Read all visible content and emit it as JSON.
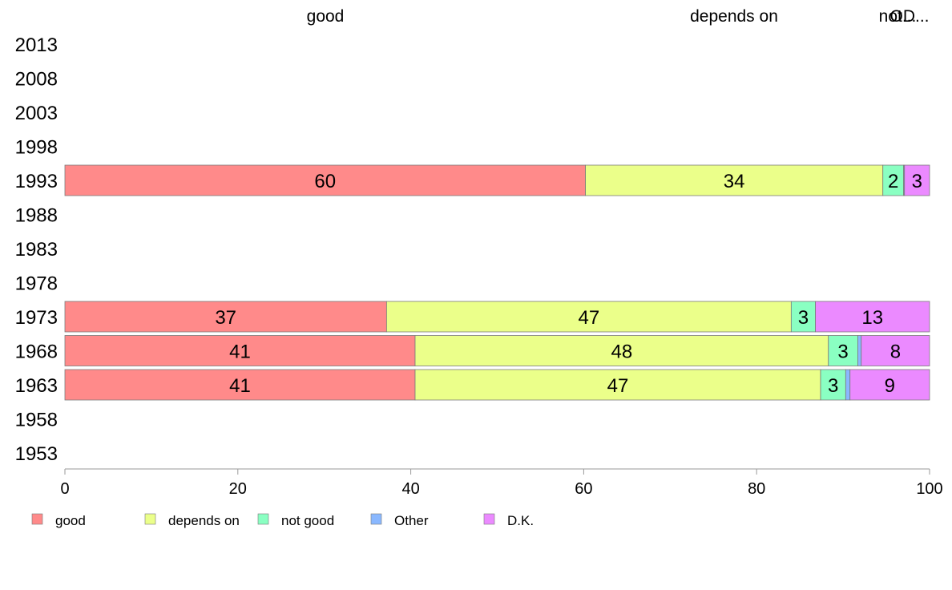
{
  "chart_data": {
    "type": "bar",
    "orientation": "horizontal",
    "stacked": true,
    "categories": [
      "2013",
      "2008",
      "2003",
      "1998",
      "1993",
      "1988",
      "1983",
      "1978",
      "1973",
      "1968",
      "1963",
      "1958",
      "1953"
    ],
    "series": [
      {
        "name": "good",
        "color": "#ff8a8a",
        "values": [
          null,
          null,
          null,
          null,
          60.2,
          null,
          null,
          null,
          37.2,
          40.5,
          40.5,
          null,
          null
        ]
      },
      {
        "name": "depends on",
        "color": "#ebff8a",
        "values": [
          null,
          null,
          null,
          null,
          34.4,
          null,
          null,
          null,
          46.8,
          47.8,
          46.9,
          null,
          null
        ]
      },
      {
        "name": "not good",
        "color": "#8affc2",
        "values": [
          null,
          null,
          null,
          null,
          2.4,
          null,
          null,
          null,
          2.8,
          3.4,
          2.9,
          null,
          null
        ]
      },
      {
        "name": "Other",
        "color": "#8ab8ff",
        "values": [
          null,
          null,
          null,
          null,
          0.1,
          null,
          null,
          null,
          0.0,
          0.4,
          0.5,
          null,
          null
        ]
      },
      {
        "name": "D.K.",
        "color": "#eb8aff",
        "values": [
          null,
          null,
          null,
          null,
          2.9,
          null,
          null,
          null,
          13.2,
          7.9,
          9.2,
          null,
          null
        ]
      }
    ],
    "data_labels": {
      "1993": [
        "60",
        "34",
        "2",
        "",
        "3"
      ],
      "1973": [
        "37",
        "47",
        "3",
        "",
        "13"
      ],
      "1968": [
        "41",
        "48",
        "3",
        "",
        "8"
      ],
      "1963": [
        "41",
        "47",
        "3",
        "",
        "9"
      ]
    },
    "top_labels": [
      "good",
      "depends on",
      "not...",
      "OD..."
    ],
    "xlim": [
      0,
      100
    ],
    "xticks": [
      0,
      20,
      40,
      60,
      80,
      100
    ],
    "xlabel": "",
    "ylabel": "",
    "title": "",
    "grid": false,
    "legend_position": "bottom-left"
  }
}
